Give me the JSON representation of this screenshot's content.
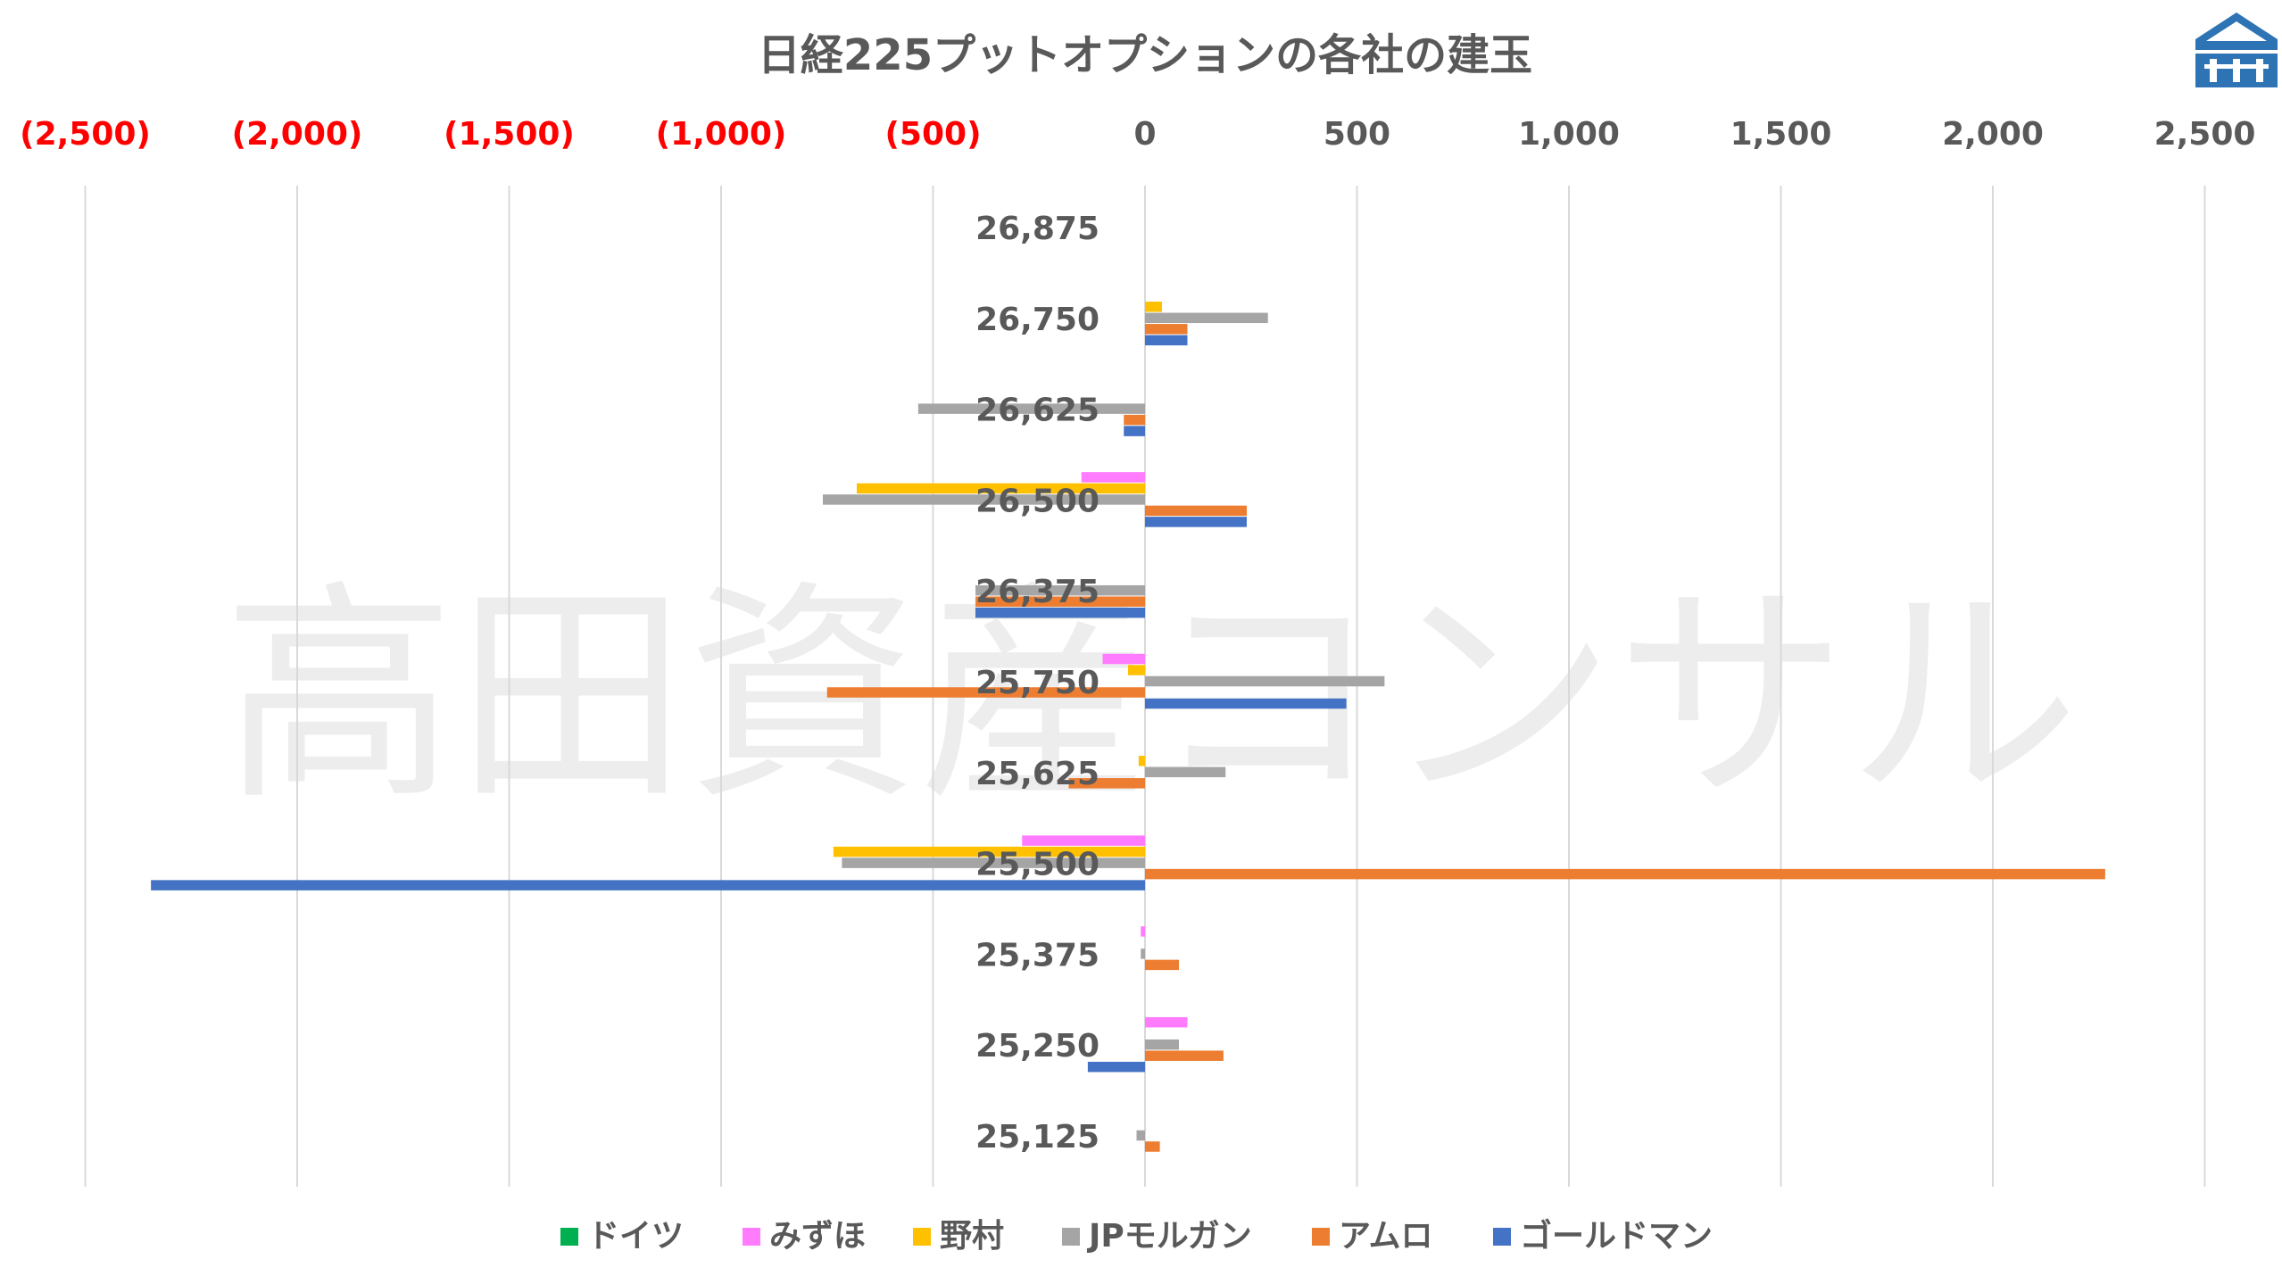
{
  "watermark": "高田資産コンサル",
  "chart_data": {
    "type": "bar",
    "orientation": "horizontal",
    "title": "日経225プットオプションの各社の建玉",
    "xlim": [
      -2500,
      2500
    ],
    "x_ticks": [
      -2500,
      -2000,
      -1500,
      -1000,
      -500,
      0,
      500,
      1000,
      1500,
      2000,
      2500
    ],
    "x_tick_labels": [
      "(2,500)",
      "(2,000)",
      "(1,500)",
      "(1,000)",
      "(500)",
      "0",
      "500",
      "1,000",
      "1,500",
      "2,000",
      "2,500"
    ],
    "grid": true,
    "legend_position": "bottom",
    "categories": [
      "26,875",
      "26,750",
      "26,625",
      "26,500",
      "26,375",
      "25,750",
      "25,625",
      "25,500",
      "25,375",
      "25,250",
      "25,125"
    ],
    "series": [
      {
        "name": "ドイツ",
        "color": "#00B050",
        "values": [
          0,
          0,
          0,
          0,
          0,
          0,
          0,
          0,
          0,
          0,
          0
        ]
      },
      {
        "name": "みずほ",
        "color": "#FF7CFF",
        "values": [
          0,
          0,
          0,
          -150,
          0,
          -100,
          0,
          -290,
          -10,
          100,
          0
        ]
      },
      {
        "name": "野村",
        "color": "#FFC000",
        "values": [
          0,
          40,
          0,
          -680,
          0,
          -40,
          -15,
          -735,
          0,
          0,
          0
        ]
      },
      {
        "name": "JPモルガン",
        "color": "#A5A5A5",
        "values": [
          0,
          290,
          -535,
          -760,
          -400,
          565,
          190,
          -715,
          -10,
          80,
          -20
        ]
      },
      {
        "name": "アムロ",
        "color": "#ED7D31",
        "values": [
          0,
          100,
          -50,
          240,
          -400,
          -750,
          -180,
          2265,
          80,
          185,
          35
        ]
      },
      {
        "name": "ゴールドマン",
        "color": "#4472C4",
        "values": [
          0,
          100,
          -50,
          240,
          -400,
          475,
          0,
          -2345,
          0,
          -135,
          0
        ]
      }
    ]
  },
  "colors": {
    "negative_tick": "#FF0000",
    "positive_tick": "#595959",
    "gridline": "#D9D9D9",
    "logo_blue": "#2E74B5"
  }
}
